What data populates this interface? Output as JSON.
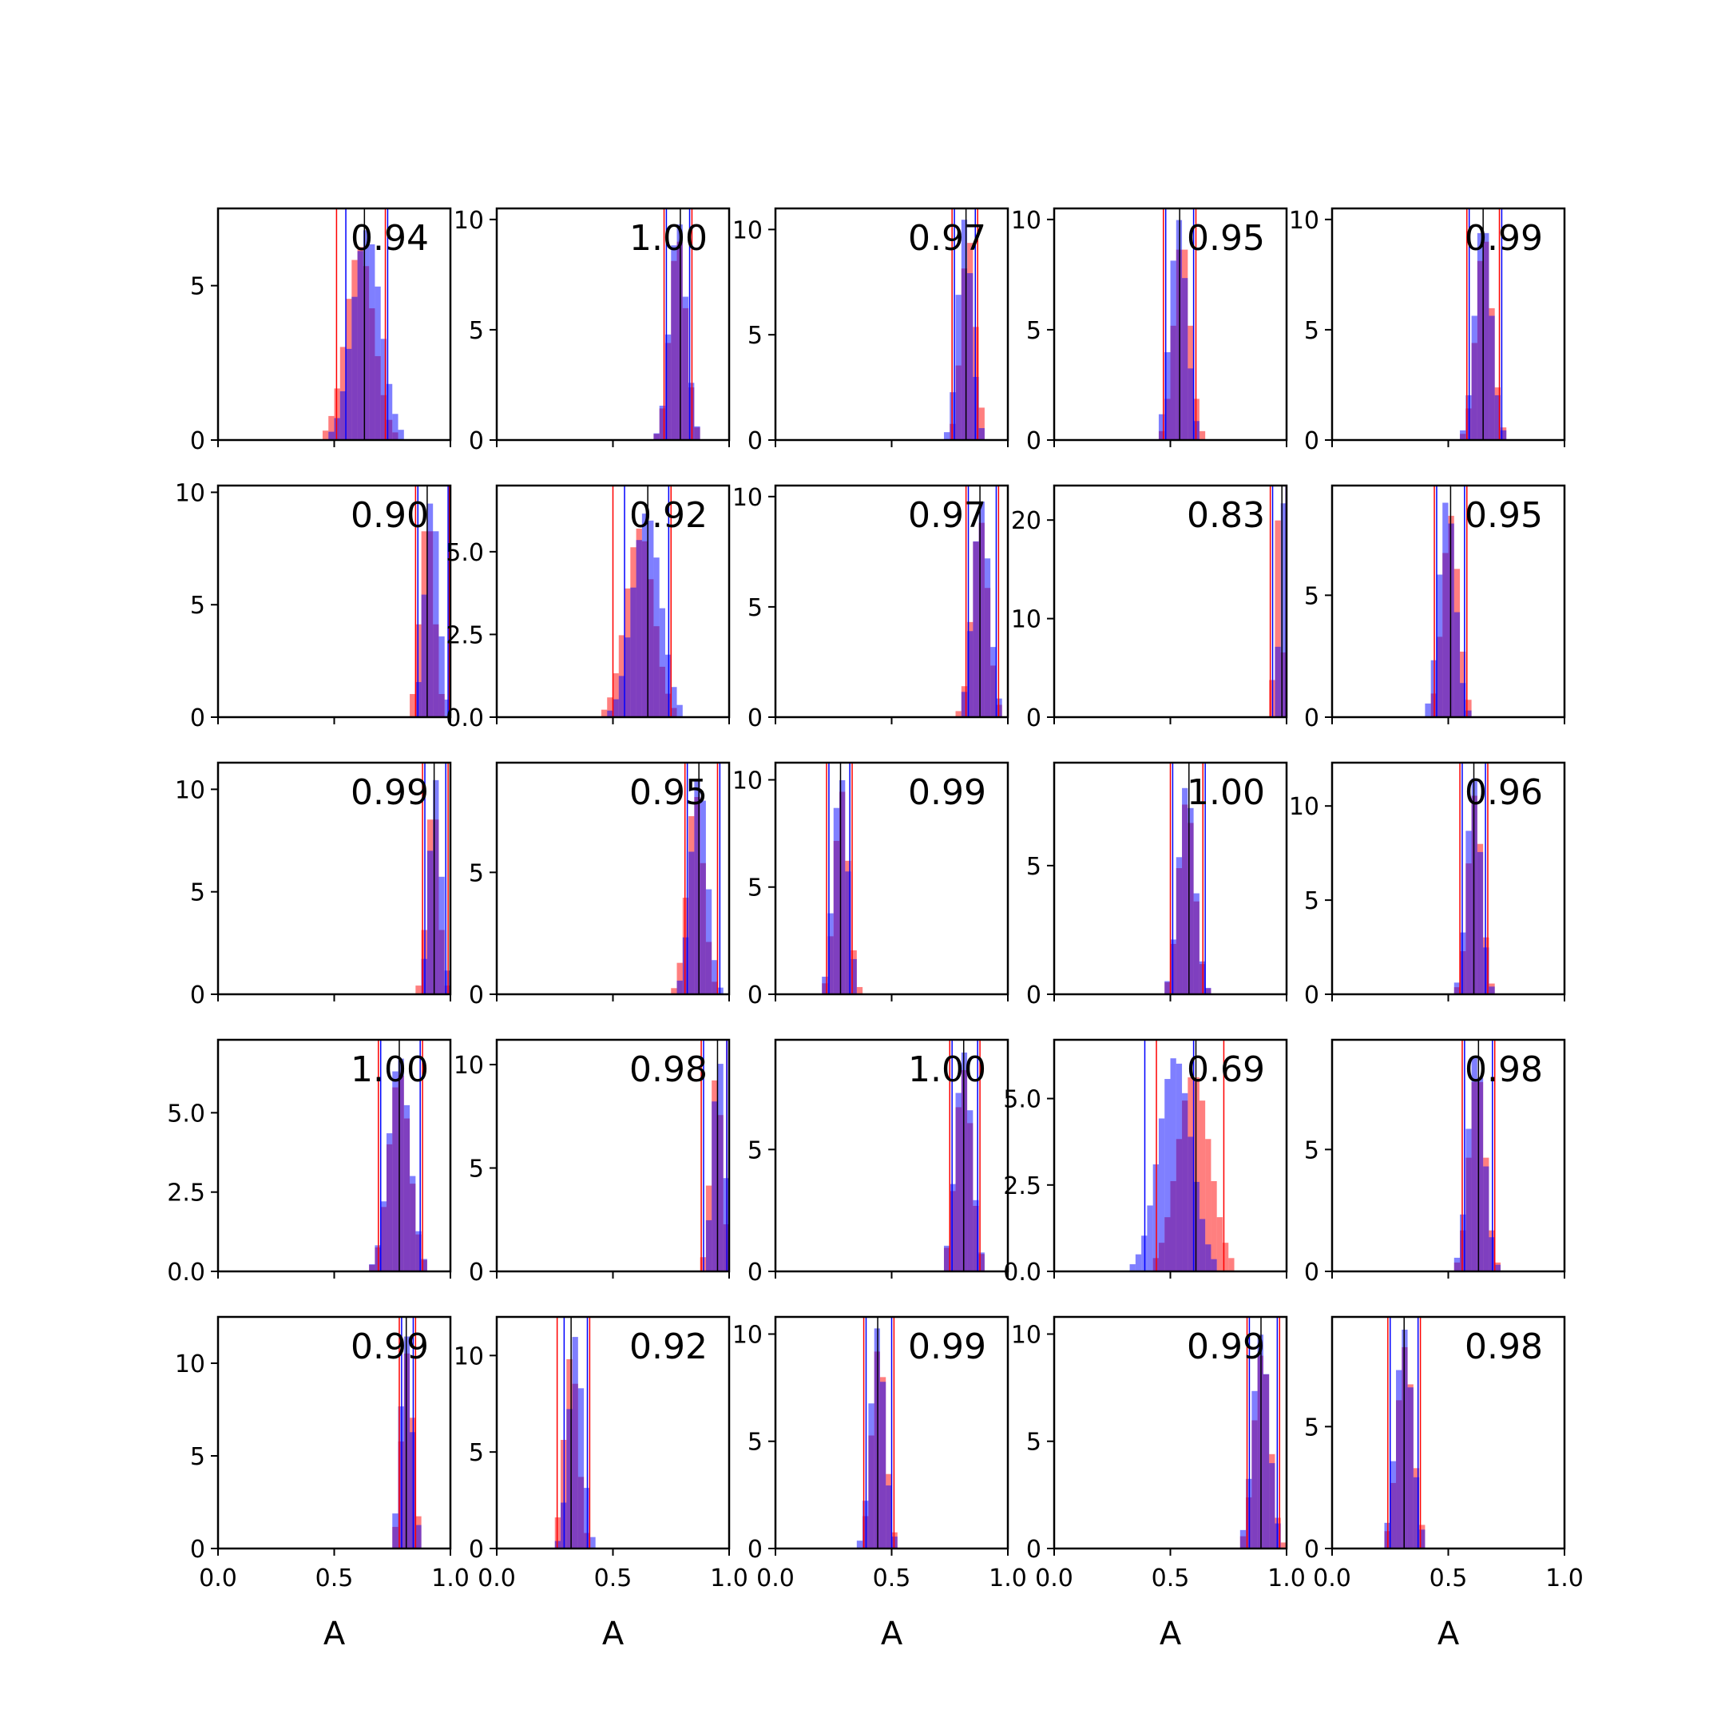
{
  "figure": {
    "xlabel": "A",
    "colors": {
      "red": "#ff0000",
      "blue": "#0000ff",
      "black": "#000000",
      "overlap": "#8040c0"
    },
    "x_ticks": [
      "0.0",
      "0.5",
      "1.0"
    ]
  },
  "chart_data": [
    {
      "type": "histogram",
      "row": 1,
      "col": 1,
      "annotation": "0.94",
      "xlim": [
        0,
        1
      ],
      "ylim": [
        0,
        7.5
      ],
      "yticks": [
        "0",
        "5"
      ],
      "hist_center": 0.62,
      "hist_width": 0.06,
      "peak": 6.8,
      "red_shift": -0.01,
      "blue_shift": 0.02,
      "vlines": {
        "black": 0.63,
        "red": [
          0.51,
          0.72
        ],
        "blue": [
          0.55,
          0.73
        ]
      }
    },
    {
      "type": "histogram",
      "row": 1,
      "col": 2,
      "annotation": "1.00",
      "xlim": [
        0,
        1
      ],
      "ylim": [
        0,
        10.5
      ],
      "yticks": [
        "0",
        "5",
        "10"
      ],
      "hist_center": 0.78,
      "hist_width": 0.035,
      "peak": 10.0,
      "red_shift": 0.0,
      "blue_shift": 0.0,
      "vlines": {
        "black": 0.79,
        "red": [
          0.72,
          0.84
        ],
        "blue": [
          0.73,
          0.83
        ]
      }
    },
    {
      "type": "histogram",
      "row": 1,
      "col": 3,
      "annotation": "0.97",
      "xlim": [
        0,
        1
      ],
      "ylim": [
        0,
        11
      ],
      "yticks": [
        "0",
        "5",
        "10"
      ],
      "hist_center": 0.82,
      "hist_width": 0.03,
      "peak": 10.5,
      "red_shift": 0.01,
      "blue_shift": -0.005,
      "vlines": {
        "black": 0.82,
        "red": [
          0.76,
          0.87
        ],
        "blue": [
          0.77,
          0.86
        ]
      }
    },
    {
      "type": "histogram",
      "row": 1,
      "col": 4,
      "annotation": "0.95",
      "xlim": [
        0,
        1
      ],
      "ylim": [
        0,
        10.5
      ],
      "yticks": [
        "0",
        "5",
        "10"
      ],
      "hist_center": 0.54,
      "hist_width": 0.035,
      "peak": 10.0,
      "red_shift": 0.01,
      "blue_shift": -0.005,
      "vlines": {
        "black": 0.54,
        "red": [
          0.47,
          0.61
        ],
        "blue": [
          0.48,
          0.6
        ]
      }
    },
    {
      "type": "histogram",
      "row": 1,
      "col": 5,
      "annotation": "0.99",
      "xlim": [
        0,
        1
      ],
      "ylim": [
        0,
        10.5
      ],
      "yticks": [
        "0",
        "5",
        "10"
      ],
      "hist_center": 0.65,
      "hist_width": 0.035,
      "peak": 10.0,
      "red_shift": 0.005,
      "blue_shift": 0.0,
      "vlines": {
        "black": 0.65,
        "red": [
          0.58,
          0.72
        ],
        "blue": [
          0.59,
          0.73
        ]
      }
    },
    {
      "type": "histogram",
      "row": 2,
      "col": 1,
      "annotation": "0.90",
      "xlim": [
        0,
        1
      ],
      "ylim": [
        0,
        10.3
      ],
      "yticks": [
        "0",
        "5",
        "10"
      ],
      "hist_center": 0.91,
      "hist_width": 0.03,
      "peak": 9.8,
      "red_shift": -0.01,
      "blue_shift": 0.01,
      "vlines": {
        "black": 0.9,
        "red": [
          0.85,
          0.995
        ],
        "blue": [
          0.86,
          0.99
        ]
      }
    },
    {
      "type": "histogram",
      "row": 2,
      "col": 2,
      "annotation": "0.92",
      "xlim": [
        0,
        1
      ],
      "ylim": [
        0,
        7.0
      ],
      "yticks": [
        "0.0",
        "2.5",
        "5.0"
      ],
      "hist_center": 0.63,
      "hist_width": 0.06,
      "peak": 6.2,
      "red_shift": -0.015,
      "blue_shift": 0.015,
      "vlines": {
        "black": 0.65,
        "red": [
          0.5,
          0.75
        ],
        "blue": [
          0.55,
          0.74
        ]
      }
    },
    {
      "type": "histogram",
      "row": 2,
      "col": 3,
      "annotation": "0.97",
      "xlim": [
        0,
        1
      ],
      "ylim": [
        0,
        10.5
      ],
      "yticks": [
        "0",
        "5",
        "10"
      ],
      "hist_center": 0.88,
      "hist_width": 0.035,
      "peak": 9.8,
      "red_shift": 0.0,
      "blue_shift": 0.005,
      "vlines": {
        "black": 0.88,
        "red": [
          0.82,
          0.96
        ],
        "blue": [
          0.83,
          0.95
        ]
      }
    },
    {
      "type": "histogram",
      "row": 2,
      "col": 4,
      "annotation": "0.83",
      "xlim": [
        0,
        1
      ],
      "ylim": [
        0,
        23.5
      ],
      "yticks": [
        "0",
        "10",
        "20"
      ],
      "hist_center": 0.975,
      "hist_width": 0.015,
      "peak": 22.0,
      "red_shift": -0.01,
      "blue_shift": 0.01,
      "vlines": {
        "black": 0.98,
        "red": [
          0.93,
          0.998
        ],
        "blue": [
          0.94,
          0.998
        ]
      }
    },
    {
      "type": "histogram",
      "row": 2,
      "col": 5,
      "annotation": "0.95",
      "xlim": [
        0,
        1
      ],
      "ylim": [
        0,
        9.5
      ],
      "yticks": [
        "0",
        "5"
      ],
      "hist_center": 0.5,
      "hist_width": 0.035,
      "peak": 9.0,
      "red_shift": 0.01,
      "blue_shift": -0.005,
      "vlines": {
        "black": 0.51,
        "red": [
          0.44,
          0.58
        ],
        "blue": [
          0.45,
          0.57
        ]
      }
    },
    {
      "type": "histogram",
      "row": 3,
      "col": 1,
      "annotation": "0.99",
      "xlim": [
        0,
        1
      ],
      "ylim": [
        0,
        11.3
      ],
      "yticks": [
        "0",
        "5",
        "10"
      ],
      "hist_center": 0.93,
      "hist_width": 0.025,
      "peak": 10.5,
      "red_shift": -0.005,
      "blue_shift": 0.005,
      "vlines": {
        "black": 0.93,
        "red": [
          0.88,
          0.99
        ],
        "blue": [
          0.89,
          0.98
        ]
      }
    },
    {
      "type": "histogram",
      "row": 3,
      "col": 2,
      "annotation": "0.95",
      "xlim": [
        0,
        1
      ],
      "ylim": [
        0,
        9.5
      ],
      "yticks": [
        "0",
        "5"
      ],
      "hist_center": 0.86,
      "hist_width": 0.035,
      "peak": 9.0,
      "red_shift": -0.005,
      "blue_shift": 0.01,
      "vlines": {
        "black": 0.87,
        "red": [
          0.81,
          0.95
        ],
        "blue": [
          0.82,
          0.96
        ]
      }
    },
    {
      "type": "histogram",
      "row": 3,
      "col": 3,
      "annotation": "0.99",
      "xlim": [
        0,
        1
      ],
      "ylim": [
        0,
        10.8
      ],
      "yticks": [
        "0",
        "5",
        "10"
      ],
      "hist_center": 0.28,
      "hist_width": 0.03,
      "peak": 10.3,
      "red_shift": 0.005,
      "blue_shift": 0.0,
      "vlines": {
        "black": 0.28,
        "red": [
          0.22,
          0.33
        ],
        "blue": [
          0.23,
          0.32
        ]
      }
    },
    {
      "type": "histogram",
      "row": 3,
      "col": 4,
      "annotation": "1.00",
      "xlim": [
        0,
        1
      ],
      "ylim": [
        0,
        9.0
      ],
      "yticks": [
        "0",
        "5"
      ],
      "hist_center": 0.57,
      "hist_width": 0.035,
      "peak": 8.2,
      "red_shift": 0.0,
      "blue_shift": 0.0,
      "vlines": {
        "black": 0.58,
        "red": [
          0.5,
          0.64
        ],
        "blue": [
          0.51,
          0.65
        ]
      }
    },
    {
      "type": "histogram",
      "row": 3,
      "col": 5,
      "annotation": "0.96",
      "xlim": [
        0,
        1
      ],
      "ylim": [
        0,
        12.3
      ],
      "yticks": [
        "0",
        "5",
        "10"
      ],
      "hist_center": 0.61,
      "hist_width": 0.03,
      "peak": 11.5,
      "red_shift": 0.005,
      "blue_shift": 0.0,
      "vlines": {
        "black": 0.61,
        "red": [
          0.55,
          0.67
        ],
        "blue": [
          0.56,
          0.66
        ]
      }
    },
    {
      "type": "histogram",
      "row": 4,
      "col": 1,
      "annotation": "1.00",
      "xlim": [
        0,
        1
      ],
      "ylim": [
        0,
        7.3
      ],
      "yticks": [
        "0.0",
        "2.5",
        "5.0"
      ],
      "hist_center": 0.78,
      "hist_width": 0.045,
      "peak": 6.8,
      "red_shift": 0.0,
      "blue_shift": 0.0,
      "vlines": {
        "black": 0.78,
        "red": [
          0.69,
          0.88
        ],
        "blue": [
          0.7,
          0.87
        ]
      }
    },
    {
      "type": "histogram",
      "row": 4,
      "col": 2,
      "annotation": "0.98",
      "xlim": [
        0,
        1
      ],
      "ylim": [
        0,
        11.2
      ],
      "yticks": [
        "0",
        "5",
        "10"
      ],
      "hist_center": 0.95,
      "hist_width": 0.025,
      "peak": 10.5,
      "red_shift": -0.005,
      "blue_shift": 0.005,
      "vlines": {
        "black": 0.95,
        "red": [
          0.88,
          0.99
        ],
        "blue": [
          0.89,
          0.99
        ]
      }
    },
    {
      "type": "histogram",
      "row": 4,
      "col": 3,
      "annotation": "1.00",
      "xlim": [
        0,
        1
      ],
      "ylim": [
        0,
        9.5
      ],
      "yticks": [
        "0",
        "5"
      ],
      "hist_center": 0.81,
      "hist_width": 0.035,
      "peak": 9.0,
      "red_shift": 0.0,
      "blue_shift": 0.0,
      "vlines": {
        "black": 0.81,
        "red": [
          0.75,
          0.88
        ],
        "blue": [
          0.76,
          0.87
        ]
      }
    },
    {
      "type": "histogram",
      "row": 4,
      "col": 4,
      "annotation": "0.69",
      "xlim": [
        0,
        1
      ],
      "ylim": [
        0,
        6.7
      ],
      "yticks": [
        "0.0",
        "2.5",
        "5.0"
      ],
      "hist_center": 0.55,
      "hist_width": 0.07,
      "peak": 6.2,
      "red_shift": 0.05,
      "blue_shift": -0.03,
      "vlines": {
        "black": 0.61,
        "red": [
          0.44,
          0.73
        ],
        "blue": [
          0.39,
          0.6
        ]
      }
    },
    {
      "type": "histogram",
      "row": 4,
      "col": 5,
      "annotation": "0.98",
      "xlim": [
        0,
        1
      ],
      "ylim": [
        0,
        9.5
      ],
      "yticks": [
        "0",
        "5"
      ],
      "hist_center": 0.62,
      "hist_width": 0.035,
      "peak": 9.0,
      "red_shift": 0.005,
      "blue_shift": 0.0,
      "vlines": {
        "black": 0.63,
        "red": [
          0.56,
          0.7
        ],
        "blue": [
          0.57,
          0.69
        ]
      }
    },
    {
      "type": "histogram",
      "row": 5,
      "col": 1,
      "annotation": "0.99",
      "xlim": [
        0,
        1
      ],
      "ylim": [
        0,
        12.5
      ],
      "yticks": [
        "0",
        "5",
        "10"
      ],
      "hist_center": 0.81,
      "hist_width": 0.025,
      "peak": 11.5,
      "red_shift": 0.005,
      "blue_shift": 0.0,
      "vlines": {
        "black": 0.81,
        "red": [
          0.78,
          0.85
        ],
        "blue": [
          0.79,
          0.84
        ]
      }
    },
    {
      "type": "histogram",
      "row": 5,
      "col": 2,
      "annotation": "0.92",
      "xlim": [
        0,
        1
      ],
      "ylim": [
        0,
        12.0
      ],
      "yticks": [
        "0",
        "5",
        "10"
      ],
      "hist_center": 0.33,
      "hist_width": 0.03,
      "peak": 11.0,
      "red_shift": -0.01,
      "blue_shift": 0.01,
      "vlines": {
        "black": 0.32,
        "red": [
          0.26,
          0.4
        ],
        "blue": [
          0.29,
          0.39
        ]
      }
    },
    {
      "type": "histogram",
      "row": 5,
      "col": 3,
      "annotation": "0.99",
      "xlim": [
        0,
        1
      ],
      "ylim": [
        0,
        10.8
      ],
      "yticks": [
        "0",
        "5",
        "10"
      ],
      "hist_center": 0.44,
      "hist_width": 0.03,
      "peak": 10.3,
      "red_shift": 0.005,
      "blue_shift": 0.0,
      "vlines": {
        "black": 0.44,
        "red": [
          0.38,
          0.51
        ],
        "blue": [
          0.39,
          0.5
        ]
      }
    },
    {
      "type": "histogram",
      "row": 5,
      "col": 4,
      "annotation": "0.99",
      "xlim": [
        0,
        1
      ],
      "ylim": [
        0,
        10.8
      ],
      "yticks": [
        "0",
        "5",
        "10"
      ],
      "hist_center": 0.89,
      "hist_width": 0.035,
      "peak": 10.0,
      "red_shift": 0.005,
      "blue_shift": 0.0,
      "vlines": {
        "black": 0.89,
        "red": [
          0.83,
          0.97
        ],
        "blue": [
          0.84,
          0.96
        ]
      }
    },
    {
      "type": "histogram",
      "row": 5,
      "col": 5,
      "annotation": "0.98",
      "xlim": [
        0,
        1
      ],
      "ylim": [
        0,
        9.5
      ],
      "yticks": [
        "0",
        "5"
      ],
      "hist_center": 0.31,
      "hist_width": 0.035,
      "peak": 9.0,
      "red_shift": 0.005,
      "blue_shift": 0.0,
      "vlines": {
        "black": 0.31,
        "red": [
          0.24,
          0.38
        ],
        "blue": [
          0.25,
          0.37
        ]
      }
    }
  ]
}
